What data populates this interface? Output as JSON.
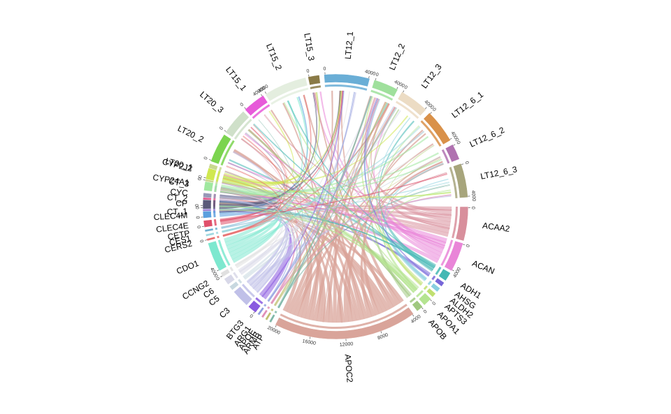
{
  "diagram": {
    "type": "chord",
    "samples": [
      {
        "name": "LT12_1",
        "color": "#6aaed6",
        "ticks": [
          "0",
          "4000"
        ]
      },
      {
        "name": "LT12_2",
        "color": "#9fe09c",
        "ticks": [
          "0",
          "4000"
        ]
      },
      {
        "name": "LT12_3",
        "color": "#ecdcc4",
        "ticks": [
          "0",
          "4000"
        ]
      },
      {
        "name": "LT12_6_1",
        "color": "#d9914a",
        "ticks": [
          "0",
          "4000"
        ]
      },
      {
        "name": "LT12_6_2",
        "color": "#b072b0",
        "ticks": [
          "0"
        ]
      },
      {
        "name": "LT12_6_3",
        "color": "#a7a57c",
        "ticks": [
          "0",
          "4000"
        ]
      },
      {
        "name": "CT_1",
        "color": "#9a7fd3",
        "ticks": []
      },
      {
        "name": "CT_2",
        "color": "#e05a8f",
        "ticks": [
          "0"
        ]
      },
      {
        "name": "CT_3",
        "color": "#b88bd6",
        "ticks": []
      },
      {
        "name": "LT20_1",
        "color": "#c8d88f",
        "ticks": [
          "0"
        ]
      },
      {
        "name": "LT20_2",
        "color": "#7bd44f",
        "ticks": [
          "0"
        ]
      },
      {
        "name": "LT20_3",
        "color": "#cfe0c9",
        "ticks": [
          "0"
        ]
      },
      {
        "name": "LT15_1",
        "color": "#e75ad9",
        "ticks": [
          "0",
          "40000"
        ]
      },
      {
        "name": "LT15_2",
        "color": "#e4eedf",
        "ticks": [
          "4000"
        ]
      },
      {
        "name": "LT15_3",
        "color": "#8a7a46",
        "ticks": [
          "0"
        ]
      }
    ],
    "genes": [
      {
        "name": "ACAA2",
        "color": "#d88f9c",
        "ticks": [
          "0"
        ]
      },
      {
        "name": "ACAN",
        "color": "#e985d8",
        "ticks": [
          "0",
          "4000"
        ]
      },
      {
        "name": "ADH1",
        "color": "#44b8b4",
        "ticks": []
      },
      {
        "name": "AHSG",
        "color": "#7766d8",
        "ticks": []
      },
      {
        "name": "ALDH2",
        "color": "#88cfe0",
        "ticks": []
      },
      {
        "name": "APTS3",
        "color": "#c0e070",
        "ticks": []
      },
      {
        "name": "APOA1",
        "color": "#b4e490",
        "ticks": [
          "0"
        ]
      },
      {
        "name": "APOB",
        "color": "#a0c880",
        "ticks": [
          "0"
        ]
      },
      {
        "name": "APOC2",
        "color": "#d9a49a",
        "ticks": [
          "4000",
          "8000",
          "12000",
          "16000",
          "20000"
        ]
      },
      {
        "name": "ATP",
        "color": "#7fb8a8",
        "ticks": []
      },
      {
        "name": "ARMB",
        "color": "#c0c070",
        "ticks": []
      },
      {
        "name": "APOE",
        "color": "#e090b8",
        "ticks": []
      },
      {
        "name": "ARG1",
        "color": "#90a0e0",
        "ticks": []
      },
      {
        "name": "BTG3",
        "color": "#8a5ae0",
        "ticks": [
          "0"
        ]
      },
      {
        "name": "C3",
        "color": "#c0c0e8",
        "ticks": []
      },
      {
        "name": "C5",
        "color": "#c8d8e0",
        "ticks": []
      },
      {
        "name": "C6",
        "color": "#d8d8e8",
        "ticks": []
      },
      {
        "name": "CCNG2",
        "color": "#e0e0e0",
        "ticks": [
          "0"
        ]
      },
      {
        "name": "CDO1",
        "color": "#7de8cf",
        "ticks": [
          "4000"
        ]
      },
      {
        "name": "CERS2",
        "color": "#e87070",
        "ticks": [
          "0"
        ]
      },
      {
        "name": "CES1",
        "color": "#a0d8e0",
        "ticks": []
      },
      {
        "name": "CETP",
        "color": "#70b0d0",
        "ticks": []
      },
      {
        "name": "CLEC4E",
        "color": "#e0506a",
        "ticks": [
          "0"
        ]
      },
      {
        "name": "CLEC4M",
        "color": "#5a9fde",
        "ticks": [
          "0"
        ]
      },
      {
        "name": "CP",
        "color": "#5a5a7a",
        "ticks": [
          "0"
        ]
      },
      {
        "name": "CYC",
        "color": "#9898b8",
        "ticks": []
      },
      {
        "name": "CYP24A1",
        "color": "#a0e8a0",
        "ticks": []
      },
      {
        "name": "CYP2J2",
        "color": "#d0e850",
        "ticks": [
          "0"
        ]
      }
    ]
  }
}
